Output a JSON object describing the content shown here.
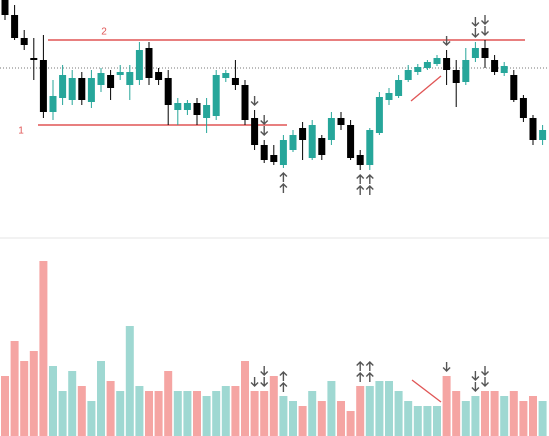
{
  "chart_data": {
    "type": "candlestick",
    "open": [
      240,
      225,
      202,
      182,
      180,
      128,
      142,
      140,
      162,
      138,
      155,
      165,
      165,
      155,
      160,
      192,
      168,
      162,
      130,
      130,
      137,
      122,
      124,
      162,
      162,
      155,
      122,
      95,
      85,
      75,
      90,
      112,
      82,
      102,
      100,
      122,
      115,
      85,
      75,
      107,
      140,
      144,
      160,
      168,
      172,
      176,
      182,
      170,
      158,
      182,
      192,
      180,
      167,
      165,
      142,
      122,
      100
    ],
    "high": [
      240,
      235,
      210,
      202,
      205,
      160,
      175,
      170,
      168,
      170,
      172,
      170,
      175,
      175,
      198,
      198,
      172,
      170,
      142,
      140,
      142,
      142,
      170,
      170,
      180,
      160,
      130,
      100,
      95,
      105,
      110,
      118,
      120,
      105,
      128,
      128,
      120,
      90,
      112,
      148,
      152,
      165,
      175,
      176,
      180,
      185,
      190,
      180,
      192,
      198,
      200,
      185,
      178,
      170,
      145,
      125,
      115
    ],
    "low": [
      220,
      200,
      190,
      160,
      122,
      120,
      135,
      135,
      135,
      132,
      148,
      140,
      160,
      140,
      155,
      155,
      155,
      115,
      115,
      125,
      115,
      107,
      120,
      158,
      150,
      115,
      90,
      77,
      75,
      72,
      88,
      80,
      80,
      80,
      95,
      110,
      80,
      70,
      70,
      105,
      135,
      142,
      158,
      165,
      170,
      174,
      155,
      133,
      155,
      178,
      172,
      165,
      164,
      138,
      118,
      95,
      95
    ],
    "close": [
      225,
      202,
      195,
      180,
      128,
      144,
      165,
      162,
      140,
      162,
      167,
      152,
      168,
      168,
      190,
      162,
      160,
      135,
      137,
      137,
      125,
      135,
      165,
      167,
      155,
      120,
      95,
      80,
      78,
      100,
      105,
      100,
      115,
      85,
      122,
      115,
      82,
      75,
      110,
      143,
      147,
      160,
      170,
      173,
      178,
      182,
      170,
      157,
      180,
      192,
      182,
      168,
      174,
      140,
      122,
      100,
      110
    ],
    "volume": [
      60,
      95,
      75,
      85,
      175,
      70,
      45,
      65,
      50,
      35,
      75,
      55,
      45,
      110,
      50,
      45,
      45,
      65,
      45,
      45,
      45,
      40,
      45,
      50,
      50,
      75,
      45,
      45,
      60,
      40,
      35,
      30,
      45,
      35,
      55,
      35,
      25,
      50,
      50,
      55,
      55,
      45,
      35,
      30,
      30,
      30,
      60,
      45,
      35,
      40,
      45,
      45,
      40,
      45,
      35,
      40,
      35
    ],
    "up_color": "#26a69a",
    "down_color": "#000000",
    "volume_up_color": "#9fd8d2",
    "volume_down_color": "#f5a5a3",
    "ylim": [
      0,
      240
    ],
    "volume_ylim": [
      0,
      180
    ],
    "price_line": 172,
    "levels": [
      {
        "label": "1",
        "value": 115
      },
      {
        "label": "2",
        "value": 200
      }
    ],
    "signals": [
      {
        "index": 26,
        "direction": "down",
        "count": 1
      },
      {
        "index": 27,
        "direction": "down",
        "count": 2
      },
      {
        "index": 29,
        "direction": "up",
        "count": 2
      },
      {
        "index": 37,
        "direction": "up",
        "count": 2
      },
      {
        "index": 38,
        "direction": "up",
        "count": 2
      },
      {
        "index": 46,
        "direction": "down",
        "count": 1
      },
      {
        "index": 49,
        "direction": "down",
        "count": 2
      },
      {
        "index": 50,
        "direction": "down",
        "count": 2
      }
    ]
  }
}
